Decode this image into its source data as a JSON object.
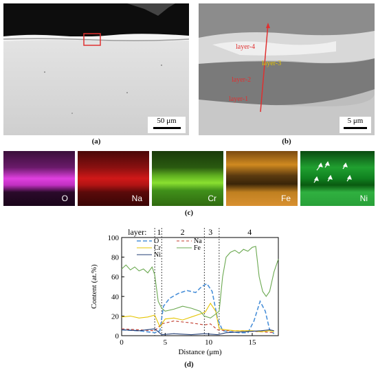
{
  "panels": {
    "a": {
      "caption": "(a)",
      "scale": "50 μm"
    },
    "b": {
      "caption": "(b)",
      "scale": "5 μm",
      "labels": [
        "layer-4",
        "layer-3",
        "layer-2",
        "layer-1"
      ]
    },
    "c": {
      "caption": "(c)",
      "elements": [
        "O",
        "Na",
        "Cr",
        "Fe",
        "Ni"
      ]
    },
    "d": {
      "caption": "(d)"
    }
  },
  "chart_data": {
    "type": "line",
    "xlabel": "Distance (μm)",
    "ylabel": "Content (at.%)",
    "xlim": [
      0,
      18
    ],
    "ylim": [
      0,
      100
    ],
    "xticks": [
      0,
      5,
      10,
      15
    ],
    "yticks": [
      0,
      20,
      40,
      60,
      80,
      100
    ],
    "layer_title": "layer:",
    "layers": [
      {
        "label": "1",
        "x": 4.3
      },
      {
        "label": "2",
        "x": 7.0
      },
      {
        "label": "3",
        "x": 10.2
      },
      {
        "label": "4",
        "x": 14.7
      }
    ],
    "boundaries": [
      3.8,
      4.6,
      9.5,
      11.2
    ],
    "legend": [
      "O",
      "Na",
      "Cr",
      "Fe",
      "Ni"
    ],
    "series": [
      {
        "name": "O",
        "color": "#4a90d9",
        "dash": "6,3",
        "x": [
          0,
          2,
          3.8,
          4.4,
          4.8,
          5.5,
          6.5,
          7.5,
          8.5,
          9.2,
          9.8,
          10.4,
          11,
          11.6,
          12.5,
          13.5,
          14.5,
          15.2,
          15.9,
          16.5,
          17,
          17.5
        ],
        "y": [
          6,
          5,
          3,
          5,
          30,
          38,
          43,
          46,
          44,
          50,
          53,
          45,
          18,
          5,
          4,
          3,
          3,
          15,
          35,
          25,
          6,
          2
        ]
      },
      {
        "name": "Na",
        "color": "#c0392b",
        "dash": "4,3",
        "x": [
          0,
          3.8,
          4.6,
          6,
          8,
          9.5,
          10.2,
          11,
          12,
          14,
          16,
          17.5
        ],
        "y": [
          7,
          5,
          12,
          15,
          13,
          11,
          12,
          6,
          5,
          5,
          4,
          3
        ]
      },
      {
        "name": "Cr",
        "color": "#e5c400",
        "dash": "",
        "x": [
          0,
          1,
          2,
          3,
          3.8,
          4.4,
          5,
          6,
          7,
          8,
          9,
          9.6,
          10.2,
          10.8,
          11.2,
          12,
          13,
          14,
          15,
          16,
          17,
          17.5
        ],
        "y": [
          19,
          20,
          18,
          19,
          21,
          9,
          17,
          18,
          16,
          19,
          22,
          24,
          33,
          25,
          7,
          6,
          5,
          5,
          5,
          4,
          5,
          4
        ]
      },
      {
        "name": "Fe",
        "color": "#6aa84f",
        "dash": "",
        "x": [
          0,
          0.5,
          1,
          1.5,
          2,
          2.5,
          3,
          3.5,
          3.8,
          4.2,
          4.6,
          5,
          6,
          7,
          8,
          9,
          9.5,
          10.2,
          10.8,
          11.2,
          11.6,
          12,
          12.5,
          13,
          13.5,
          14,
          14.5,
          15,
          15.4,
          15.8,
          16.2,
          16.6,
          17,
          17.5,
          18
        ],
        "y": [
          68,
          72,
          67,
          70,
          66,
          68,
          64,
          70,
          62,
          35,
          28,
          25,
          27,
          30,
          28,
          25,
          20,
          18,
          22,
          25,
          60,
          80,
          85,
          87,
          84,
          88,
          86,
          90,
          91,
          60,
          45,
          40,
          45,
          65,
          78
        ]
      },
      {
        "name": "Ni",
        "color": "#1f3b73",
        "dash": "",
        "x": [
          0,
          2,
          3.8,
          4.6,
          6,
          8,
          9.5,
          11,
          12,
          14,
          16,
          17,
          17.5
        ],
        "y": [
          6,
          5,
          7,
          1,
          2,
          1,
          2,
          1,
          3,
          4,
          5,
          6,
          5
        ]
      }
    ]
  }
}
